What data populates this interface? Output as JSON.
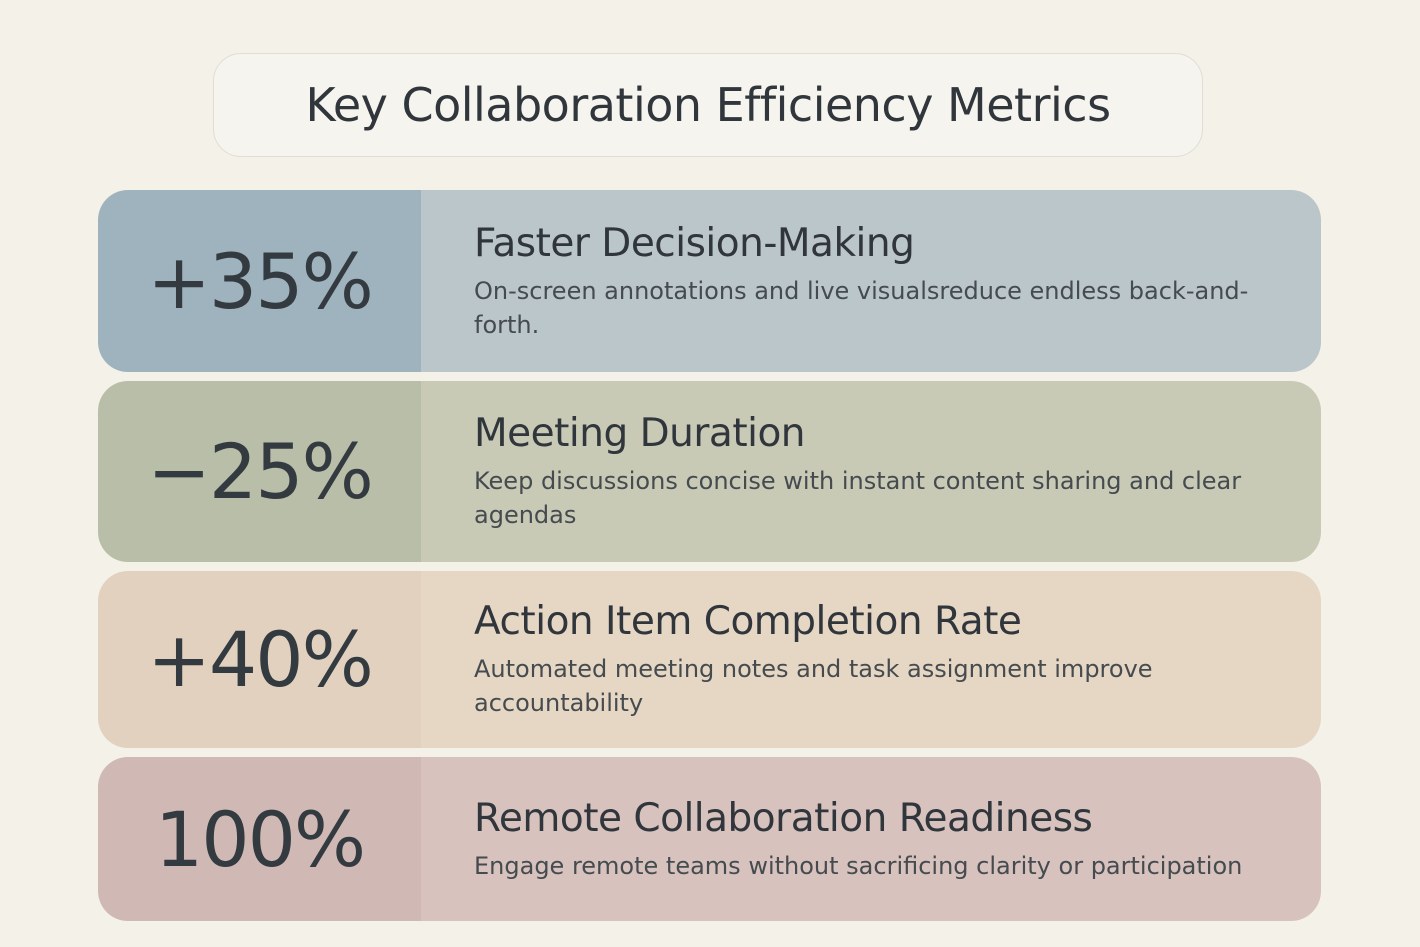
{
  "title": "Key Collaboration Efficiency Metrics",
  "metrics": [
    {
      "value": "+35%",
      "heading": "Faster Decision-Making",
      "description": "On-screen annotations and live visualsreduce endless back-and-forth.",
      "left_color": "#9fb3be",
      "right_color": "#bac6ca"
    },
    {
      "value": "−25%",
      "heading": "Meeting Duration",
      "description": "Keep discussions concise with instant content sharing and clear agendas",
      "left_color": "#b9bea9",
      "right_color": "#c8cab6"
    },
    {
      "value": "+40%",
      "heading": "Action Item Completion Rate",
      "description": "Automated meeting notes and task assignment improve accountability",
      "left_color": "#e2d1bf",
      "right_color": "#e6d7c4"
    },
    {
      "value": "100%",
      "heading": "Remote Collaboration Readiness",
      "description": "Engage remote teams without sacrificing clarity or participation",
      "left_color": "#d0b9b5",
      "right_color": "#d7c2be"
    }
  ]
}
